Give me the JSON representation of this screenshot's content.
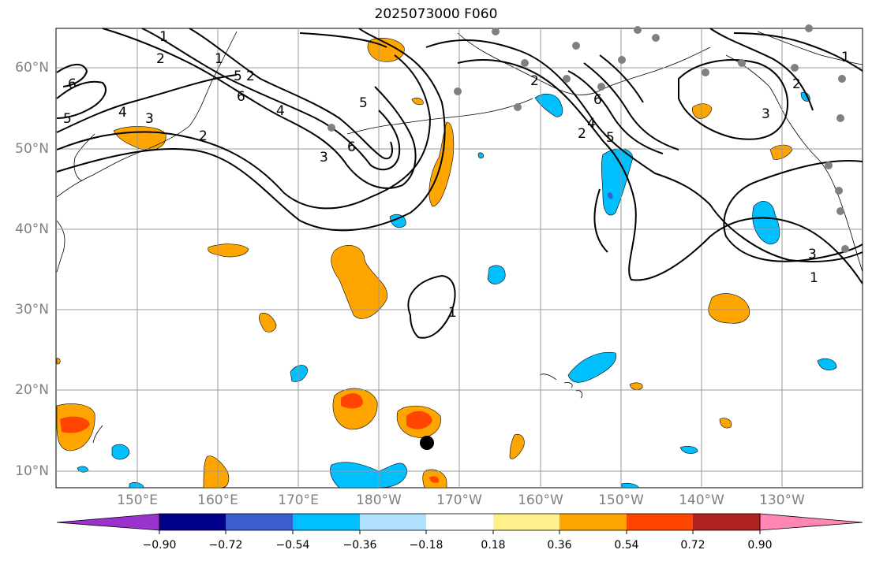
{
  "title": "2025073000 F060",
  "map": {
    "lat_labels": [
      "60°N",
      "50°N",
      "40°N",
      "30°N",
      "20°N",
      "10°N"
    ],
    "lon_labels": [
      "150°E",
      "160°E",
      "170°E",
      "180°W",
      "170°W",
      "160°W",
      "150°W",
      "140°W",
      "130°W"
    ],
    "contour_labels": [
      "1",
      "2",
      "6",
      "5",
      "4",
      "3",
      "2",
      "1",
      "5",
      "6",
      "3",
      "2",
      "4",
      "5",
      "6",
      "2",
      "5",
      "4",
      "3",
      "2",
      "1",
      "1",
      "3",
      "1",
      "2",
      "6"
    ],
    "fill_colors": {
      "orange": "#ffa500",
      "red_orange": "#ff4500",
      "cyan": "#00bfff",
      "blue": "#3a5fcd"
    },
    "marker": {
      "description_icon": "black-dot-icon",
      "color": "#000000"
    },
    "station_color": "#808080"
  },
  "colorbar": {
    "colors": [
      "#9a32cd",
      "#00008b",
      "#3a5fcd",
      "#00bfff",
      "#b0e2ff",
      "#ffffff",
      "#fff08c",
      "#ffa500",
      "#ff4500",
      "#b22222",
      "#ff86b4"
    ],
    "tick_labels": [
      "−0.90",
      "−0.72",
      "−0.54",
      "−0.36",
      "−0.18",
      "0.18",
      "0.36",
      "0.54",
      "0.72",
      "0.90"
    ]
  }
}
